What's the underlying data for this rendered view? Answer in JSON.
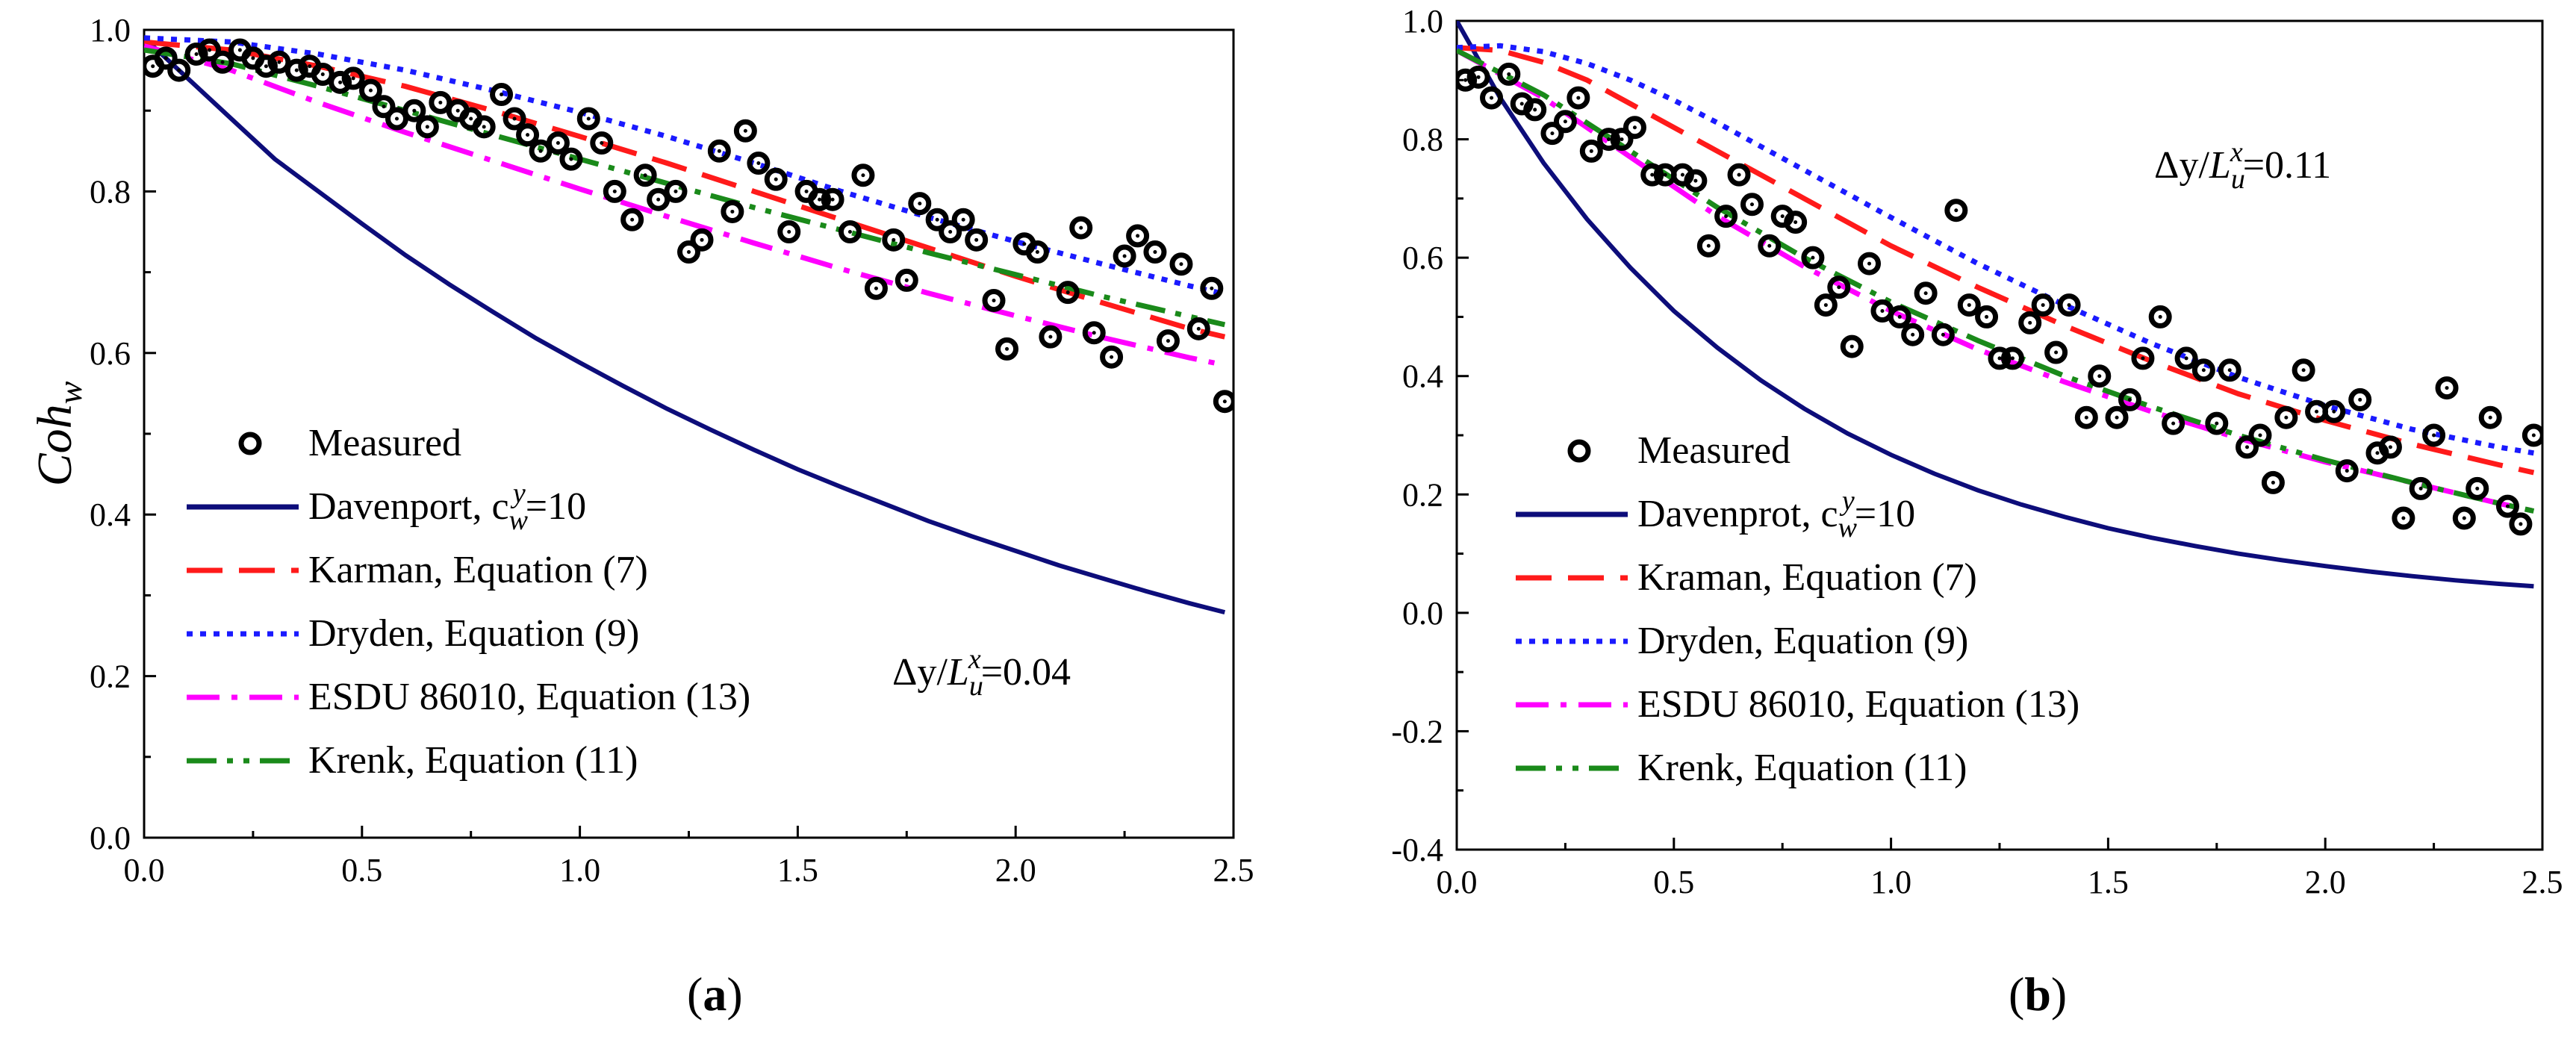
{
  "chart_data": [
    {
      "type": "line",
      "panel_label": "a",
      "ylabel": "Coh",
      "ylabel_sub": "w",
      "xlabel": "",
      "xlim": [
        0,
        2.5
      ],
      "ylim": [
        0,
        1.0
      ],
      "xticks": [
        "0.0",
        "0.5",
        "1.0",
        "1.5",
        "2.0",
        "2.5"
      ],
      "yticks": [
        "0.0",
        "0.2",
        "0.4",
        "0.6",
        "0.8",
        "1.0"
      ],
      "annotation": {
        "pre": "Δy/",
        "L": "L",
        "sub": "u",
        "sup": "x",
        "post": "=0.04"
      },
      "legend": [
        "Measured",
        "Davenport, c",
        "Karman, Equation (7)",
        "Dryden, Equation (9)",
        "ESDU 86010, Equation (13)",
        "Krenk, Equation (11)"
      ],
      "legend_davenport_parts": {
        "sub": "w",
        "sup": "y",
        "post": "=10"
      },
      "series": [
        {
          "name": "Davenport",
          "style": "solid",
          "color": "#0d0d7a",
          "x": [
            0,
            0.1,
            0.2,
            0.3,
            0.4,
            0.5,
            0.6,
            0.7,
            0.8,
            0.9,
            1.0,
            1.1,
            1.2,
            1.3,
            1.4,
            1.5,
            1.6,
            1.7,
            1.8,
            1.9,
            2.0,
            2.1,
            2.2,
            2.3,
            2.4,
            2.48
          ],
          "y": [
            0.99,
            0.94,
            0.89,
            0.84,
            0.8,
            0.76,
            0.721,
            0.685,
            0.651,
            0.618,
            0.588,
            0.559,
            0.531,
            0.505,
            0.48,
            0.456,
            0.434,
            0.413,
            0.392,
            0.373,
            0.355,
            0.337,
            0.321,
            0.305,
            0.29,
            0.279
          ]
        },
        {
          "name": "Karman, Equation (7)",
          "style": "dash",
          "color": "#ff1a1a",
          "x": [
            0,
            0.2,
            0.4,
            0.6,
            0.8,
            1.0,
            1.2,
            1.4,
            1.6,
            1.8,
            2.0,
            2.2,
            2.4,
            2.48
          ],
          "y": [
            0.985,
            0.975,
            0.955,
            0.93,
            0.9,
            0.868,
            0.835,
            0.8,
            0.765,
            0.73,
            0.695,
            0.662,
            0.63,
            0.62
          ]
        },
        {
          "name": "Dryden, Equation (9)",
          "style": "dot",
          "color": "#1a1aff",
          "x": [
            0,
            0.2,
            0.4,
            0.6,
            0.8,
            1.0,
            1.2,
            1.4,
            1.6,
            1.8,
            2.0,
            2.2,
            2.4,
            2.48
          ],
          "y": [
            0.99,
            0.985,
            0.97,
            0.95,
            0.925,
            0.898,
            0.868,
            0.835,
            0.8,
            0.768,
            0.738,
            0.71,
            0.683,
            0.673
          ]
        },
        {
          "name": "ESDU 86010, Equation (13)",
          "style": "dashdot",
          "color": "#ff00ff",
          "x": [
            0,
            0.2,
            0.4,
            0.6,
            0.8,
            1.0,
            1.2,
            1.4,
            1.6,
            1.8,
            2.0,
            2.2,
            2.4,
            2.48
          ],
          "y": [
            0.98,
            0.95,
            0.91,
            0.873,
            0.838,
            0.803,
            0.769,
            0.736,
            0.704,
            0.674,
            0.646,
            0.619,
            0.594,
            0.585
          ]
        },
        {
          "name": "Krenk, Equation (11)",
          "style": "dashdotdot",
          "color": "#1a8a1a",
          "x": [
            0,
            0.2,
            0.4,
            0.6,
            0.8,
            1.0,
            1.2,
            1.4,
            1.6,
            1.8,
            2.0,
            2.2,
            2.4,
            2.48
          ],
          "y": [
            0.975,
            0.958,
            0.93,
            0.9,
            0.87,
            0.84,
            0.81,
            0.78,
            0.752,
            0.724,
            0.697,
            0.67,
            0.645,
            0.635
          ]
        },
        {
          "name": "Measured",
          "style": "marker",
          "color": "#000000",
          "x": [
            0.02,
            0.05,
            0.08,
            0.12,
            0.15,
            0.18,
            0.22,
            0.25,
            0.28,
            0.31,
            0.35,
            0.38,
            0.41,
            0.45,
            0.48,
            0.52,
            0.55,
            0.58,
            0.62,
            0.65,
            0.68,
            0.72,
            0.75,
            0.78,
            0.82,
            0.85,
            0.88,
            0.91,
            0.95,
            0.98,
            1.02,
            1.05,
            1.08,
            1.12,
            1.15,
            1.18,
            1.22,
            1.25,
            1.28,
            1.32,
            1.35,
            1.38,
            1.41,
            1.45,
            1.48,
            1.52,
            1.55,
            1.58,
            1.62,
            1.65,
            1.68,
            1.72,
            1.75,
            1.78,
            1.82,
            1.85,
            1.88,
            1.91,
            1.95,
            1.98,
            2.02,
            2.05,
            2.08,
            2.12,
            2.15,
            2.18,
            2.22,
            2.25,
            2.28,
            2.32,
            2.35,
            2.38,
            2.42,
            2.45,
            2.48
          ],
          "y": [
            0.955,
            0.965,
            0.95,
            0.97,
            0.975,
            0.96,
            0.975,
            0.965,
            0.955,
            0.96,
            0.95,
            0.955,
            0.945,
            0.935,
            0.94,
            0.925,
            0.905,
            0.89,
            0.9,
            0.88,
            0.91,
            0.9,
            0.89,
            0.88,
            0.92,
            0.89,
            0.87,
            0.85,
            0.86,
            0.84,
            0.89,
            0.86,
            0.8,
            0.765,
            0.82,
            0.79,
            0.8,
            0.725,
            0.74,
            0.85,
            0.775,
            0.875,
            0.835,
            0.815,
            0.75,
            0.8,
            0.79,
            0.79,
            0.75,
            0.82,
            0.68,
            0.74,
            0.69,
            0.785,
            0.765,
            0.75,
            0.765,
            0.74,
            0.665,
            0.605,
            0.735,
            0.725,
            0.62,
            0.675,
            0.755,
            0.625,
            0.595,
            0.72,
            0.745,
            0.725,
            0.615,
            0.71,
            0.63,
            0.68,
            0.54
          ]
        }
      ]
    },
    {
      "type": "line",
      "panel_label": "b",
      "ylabel": "",
      "xlabel": "",
      "xlim": [
        0,
        2.5
      ],
      "ylim": [
        -0.4,
        1.0
      ],
      "xticks": [
        "0.0",
        "0.5",
        "1.0",
        "1.5",
        "2.0",
        "2.5"
      ],
      "yticks": [
        "-0.4",
        "-0.2",
        "0.0",
        "0.2",
        "0.4",
        "0.6",
        "0.8",
        "1.0"
      ],
      "annotation": {
        "pre": "Δy/",
        "L": "L",
        "sub": "u",
        "sup": "x",
        "post": "=0.11"
      },
      "legend": [
        "Measured",
        "Davenprot, c",
        "Kraman, Equation (7)",
        "Dryden, Equation (9)",
        "ESDU 86010, Equation (13)",
        "Krenk, Equation (11)"
      ],
      "legend_davenport_parts": {
        "sub": "w",
        "sup": "y",
        "post": "=10"
      },
      "series": [
        {
          "name": "Davenprot",
          "style": "solid",
          "color": "#0d0d7a",
          "x": [
            0,
            0.1,
            0.2,
            0.3,
            0.4,
            0.5,
            0.6,
            0.7,
            0.8,
            0.9,
            1.0,
            1.1,
            1.2,
            1.3,
            1.4,
            1.5,
            1.6,
            1.7,
            1.8,
            1.9,
            2.0,
            2.1,
            2.2,
            2.3,
            2.4,
            2.48
          ],
          "y": [
            1.0,
            0.87,
            0.76,
            0.665,
            0.583,
            0.51,
            0.448,
            0.393,
            0.345,
            0.303,
            0.267,
            0.235,
            0.207,
            0.183,
            0.162,
            0.143,
            0.127,
            0.113,
            0.1,
            0.089,
            0.079,
            0.07,
            0.062,
            0.055,
            0.049,
            0.045
          ]
        },
        {
          "name": "Kraman, Equation (7)",
          "style": "dash",
          "color": "#ff1a1a",
          "x": [
            0,
            0.1,
            0.2,
            0.3,
            0.4,
            0.5,
            0.6,
            0.7,
            0.8,
            0.9,
            1.0,
            1.2,
            1.4,
            1.6,
            1.8,
            2.0,
            2.2,
            2.4,
            2.48
          ],
          "y": [
            0.955,
            0.95,
            0.93,
            0.9,
            0.86,
            0.82,
            0.78,
            0.74,
            0.7,
            0.66,
            0.62,
            0.55,
            0.485,
            0.425,
            0.37,
            0.325,
            0.285,
            0.25,
            0.237
          ]
        },
        {
          "name": "Dryden, Equation (9)",
          "style": "dot",
          "color": "#1a1aff",
          "x": [
            0,
            0.1,
            0.2,
            0.3,
            0.4,
            0.5,
            0.6,
            0.7,
            0.8,
            0.9,
            1.0,
            1.2,
            1.4,
            1.6,
            1.8,
            2.0,
            2.2,
            2.4,
            2.48
          ],
          "y": [
            0.955,
            0.958,
            0.948,
            0.928,
            0.9,
            0.866,
            0.828,
            0.788,
            0.748,
            0.708,
            0.668,
            0.59,
            0.52,
            0.455,
            0.398,
            0.35,
            0.31,
            0.28,
            0.27
          ]
        },
        {
          "name": "ESDU 86010, Equation (13)",
          "style": "dashdot",
          "color": "#ff00ff",
          "x": [
            0,
            0.2,
            0.4,
            0.6,
            0.8,
            1.0,
            1.2,
            1.4,
            1.6,
            1.8,
            2.0,
            2.2,
            2.4,
            2.48
          ],
          "y": [
            0.95,
            0.87,
            0.77,
            0.67,
            0.585,
            0.51,
            0.445,
            0.39,
            0.34,
            0.295,
            0.255,
            0.22,
            0.185,
            0.172
          ]
        },
        {
          "name": "Krenk, Equation (11)",
          "style": "dashdotdot",
          "color": "#1a8a1a",
          "x": [
            0,
            0.2,
            0.4,
            0.6,
            0.8,
            1.0,
            1.2,
            1.4,
            1.6,
            1.8,
            2.0,
            2.2,
            2.4,
            2.48
          ],
          "y": [
            0.95,
            0.875,
            0.78,
            0.685,
            0.6,
            0.525,
            0.46,
            0.4,
            0.348,
            0.3,
            0.258,
            0.22,
            0.185,
            0.172
          ]
        },
        {
          "name": "Measured",
          "style": "marker",
          "color": "#000000",
          "x": [
            0.02,
            0.05,
            0.08,
            0.12,
            0.15,
            0.18,
            0.22,
            0.25,
            0.28,
            0.31,
            0.35,
            0.38,
            0.41,
            0.45,
            0.48,
            0.52,
            0.55,
            0.58,
            0.62,
            0.65,
            0.68,
            0.72,
            0.75,
            0.78,
            0.82,
            0.85,
            0.88,
            0.91,
            0.95,
            0.98,
            1.02,
            1.05,
            1.08,
            1.12,
            1.15,
            1.18,
            1.22,
            1.25,
            1.28,
            1.32,
            1.35,
            1.38,
            1.41,
            1.45,
            1.48,
            1.52,
            1.55,
            1.58,
            1.62,
            1.65,
            1.68,
            1.72,
            1.75,
            1.78,
            1.82,
            1.85,
            1.88,
            1.91,
            1.95,
            1.98,
            2.02,
            2.05,
            2.08,
            2.12,
            2.15,
            2.18,
            2.22,
            2.25,
            2.28,
            2.32,
            2.35,
            2.38,
            2.42,
            2.45,
            2.48
          ],
          "y": [
            0.9,
            0.905,
            0.87,
            0.91,
            0.86,
            0.85,
            0.81,
            0.83,
            0.87,
            0.78,
            0.8,
            0.8,
            0.82,
            0.74,
            0.74,
            0.74,
            0.73,
            0.62,
            0.67,
            0.74,
            0.69,
            0.62,
            0.67,
            0.66,
            0.6,
            0.52,
            0.55,
            0.45,
            0.59,
            0.51,
            0.5,
            0.47,
            0.54,
            0.47,
            0.68,
            0.52,
            0.5,
            0.43,
            0.43,
            0.49,
            0.52,
            0.44,
            0.52,
            0.33,
            0.4,
            0.33,
            0.36,
            0.43,
            0.5,
            0.32,
            0.43,
            0.41,
            0.32,
            0.41,
            0.28,
            0.3,
            0.22,
            0.33,
            0.41,
            0.34,
            0.34,
            0.24,
            0.36,
            0.27,
            0.28,
            0.16,
            0.21,
            0.3,
            0.38,
            0.16,
            0.21,
            0.33,
            0.18,
            0.15,
            0.3
          ]
        }
      ]
    }
  ]
}
